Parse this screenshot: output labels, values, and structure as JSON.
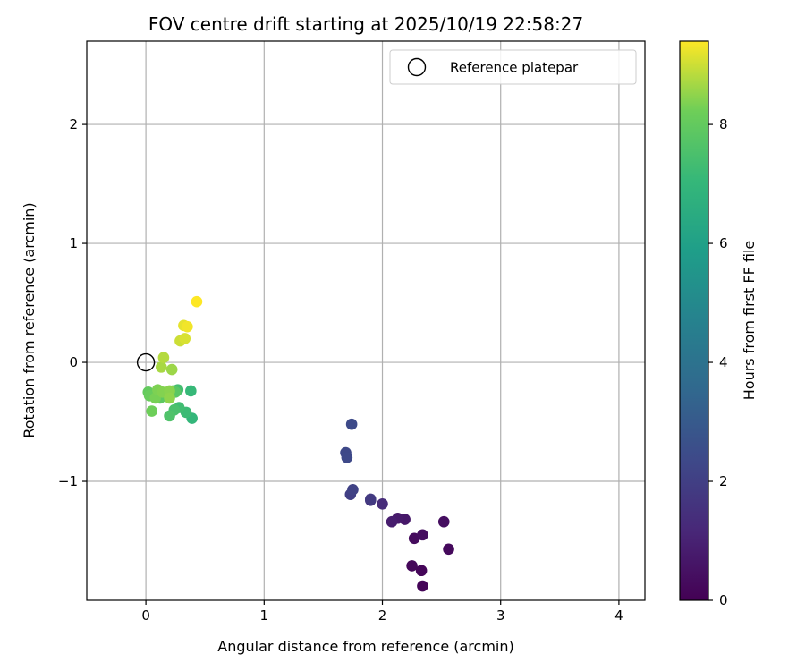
{
  "chart_data": {
    "type": "scatter",
    "title": "FOV centre drift starting at 2025/10/19 22:58:27",
    "xlabel": "Angular distance from reference (arcmin)",
    "ylabel": "Rotation from reference (arcmin)",
    "xlim": [
      -0.5,
      4.22
    ],
    "ylim": [
      -2.0,
      2.7
    ],
    "xticks": [
      0,
      1,
      2,
      3,
      4
    ],
    "xtick_labels": [
      "0",
      "1",
      "2",
      "3",
      "4"
    ],
    "yticks": [
      -1,
      0,
      1,
      2
    ],
    "ytick_labels": [
      "−1",
      "0",
      "1",
      "2"
    ],
    "grid": true,
    "legend": {
      "position": "top-right",
      "entries": [
        "Reference platepar"
      ]
    },
    "reference_point": {
      "x": 0,
      "y": 0
    },
    "colorbar": {
      "label": "Hours from first FF file",
      "colormap": "viridis",
      "range": [
        0,
        9.4
      ],
      "ticks": [
        0,
        2,
        4,
        6,
        8
      ],
      "tick_labels": [
        "0",
        "2",
        "4",
        "6",
        "8"
      ]
    },
    "points": [
      {
        "x": 2.34,
        "y": -1.88,
        "t": 0.1
      },
      {
        "x": 2.33,
        "y": -1.75,
        "t": 0.15
      },
      {
        "x": 2.25,
        "y": -1.71,
        "t": 0.2
      },
      {
        "x": 2.56,
        "y": -1.57,
        "t": 0.25
      },
      {
        "x": 2.27,
        "y": -1.48,
        "t": 0.3
      },
      {
        "x": 2.34,
        "y": -1.45,
        "t": 0.35
      },
      {
        "x": 2.52,
        "y": -1.34,
        "t": 0.4
      },
      {
        "x": 2.19,
        "y": -1.32,
        "t": 0.7
      },
      {
        "x": 2.13,
        "y": -1.31,
        "t": 0.75
      },
      {
        "x": 2.08,
        "y": -1.34,
        "t": 0.85
      },
      {
        "x": 2.0,
        "y": -1.19,
        "t": 1.3
      },
      {
        "x": 1.9,
        "y": -1.16,
        "t": 1.6
      },
      {
        "x": 1.9,
        "y": -1.15,
        "t": 1.8
      },
      {
        "x": 1.73,
        "y": -1.11,
        "t": 2.0
      },
      {
        "x": 1.75,
        "y": -1.07,
        "t": 2.1
      },
      {
        "x": 1.69,
        "y": -0.76,
        "t": 2.3
      },
      {
        "x": 1.7,
        "y": -0.8,
        "t": 2.35
      },
      {
        "x": 1.74,
        "y": -0.52,
        "t": 2.4
      },
      {
        "x": 0.39,
        "y": -0.47,
        "t": 7.0
      },
      {
        "x": 0.38,
        "y": -0.24,
        "t": 7.1
      },
      {
        "x": 0.34,
        "y": -0.42,
        "t": 7.2
      },
      {
        "x": 0.28,
        "y": -0.38,
        "t": 7.3
      },
      {
        "x": 0.27,
        "y": -0.23,
        "t": 7.35
      },
      {
        "x": 0.24,
        "y": -0.4,
        "t": 7.5
      },
      {
        "x": 0.2,
        "y": -0.45,
        "t": 7.6
      },
      {
        "x": 0.23,
        "y": -0.24,
        "t": 7.7
      },
      {
        "x": 0.25,
        "y": -0.25,
        "t": 7.8
      },
      {
        "x": 0.12,
        "y": -0.3,
        "t": 7.9
      },
      {
        "x": 0.02,
        "y": -0.25,
        "t": 8.0
      },
      {
        "x": 0.03,
        "y": -0.28,
        "t": 8.1
      },
      {
        "x": 0.05,
        "y": -0.41,
        "t": 8.2
      },
      {
        "x": 0.08,
        "y": -0.3,
        "t": 8.3
      },
      {
        "x": 0.1,
        "y": -0.23,
        "t": 8.35
      },
      {
        "x": 0.14,
        "y": -0.25,
        "t": 8.4
      },
      {
        "x": 0.2,
        "y": -0.24,
        "t": 8.45
      },
      {
        "x": 0.2,
        "y": -0.3,
        "t": 8.5
      },
      {
        "x": 0.22,
        "y": -0.06,
        "t": 8.6
      },
      {
        "x": 0.13,
        "y": -0.04,
        "t": 8.7
      },
      {
        "x": 0.15,
        "y": 0.04,
        "t": 8.8
      },
      {
        "x": 0.29,
        "y": 0.18,
        "t": 9.0
      },
      {
        "x": 0.33,
        "y": 0.2,
        "t": 9.1
      },
      {
        "x": 0.32,
        "y": 0.31,
        "t": 9.2
      },
      {
        "x": 0.35,
        "y": 0.3,
        "t": 9.3
      },
      {
        "x": 0.43,
        "y": 0.51,
        "t": 9.4
      }
    ]
  }
}
